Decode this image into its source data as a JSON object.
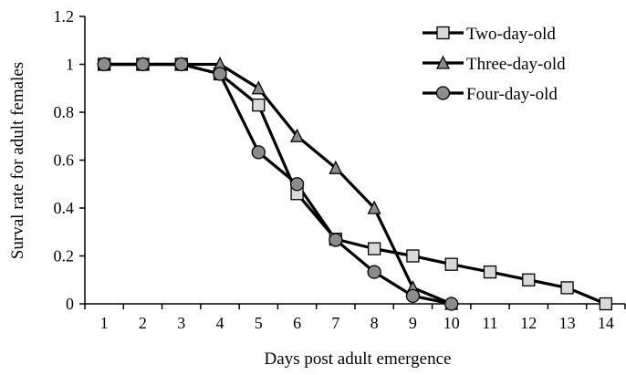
{
  "chart_data": {
    "type": "line",
    "title": "",
    "xlabel": "Days post adult emergence",
    "ylabel": "Surval rate for adult females",
    "xlim": [
      0.5,
      14.5
    ],
    "ylim": [
      0,
      1.2
    ],
    "x_ticks": [
      1,
      2,
      3,
      4,
      5,
      6,
      7,
      8,
      9,
      10,
      11,
      12,
      13,
      14
    ],
    "y_ticks": [
      "0",
      "0.2",
      "0.4",
      "0.6",
      "0.8",
      "1",
      "1.2"
    ],
    "grid": false,
    "legend_position": "top-right",
    "series": [
      {
        "name": "Two-day-old",
        "marker": "square",
        "marker_color": "#d9d9d9",
        "x": [
          1,
          2,
          3,
          4,
          5,
          6,
          7,
          8,
          9,
          10,
          11,
          12,
          13,
          14
        ],
        "y": [
          1,
          1,
          1,
          0.96,
          0.83,
          0.46,
          0.27,
          0.23,
          0.2,
          0.165,
          0.133,
          0.1,
          0.067,
          0
        ]
      },
      {
        "name": "Three-day-old",
        "marker": "triangle",
        "marker_color": "#8c8c8c",
        "x": [
          1,
          2,
          3,
          4,
          5,
          6,
          7,
          8,
          9,
          10
        ],
        "y": [
          1,
          1,
          1,
          1,
          0.9,
          0.7,
          0.567,
          0.4,
          0.067,
          0
        ]
      },
      {
        "name": "Four-day-old",
        "marker": "circle",
        "marker_color": "#8c8c8c",
        "x": [
          1,
          2,
          3,
          4,
          5,
          6,
          7,
          8,
          9,
          10
        ],
        "y": [
          1,
          1,
          1,
          0.96,
          0.633,
          0.5,
          0.267,
          0.133,
          0.033,
          0
        ]
      }
    ]
  }
}
